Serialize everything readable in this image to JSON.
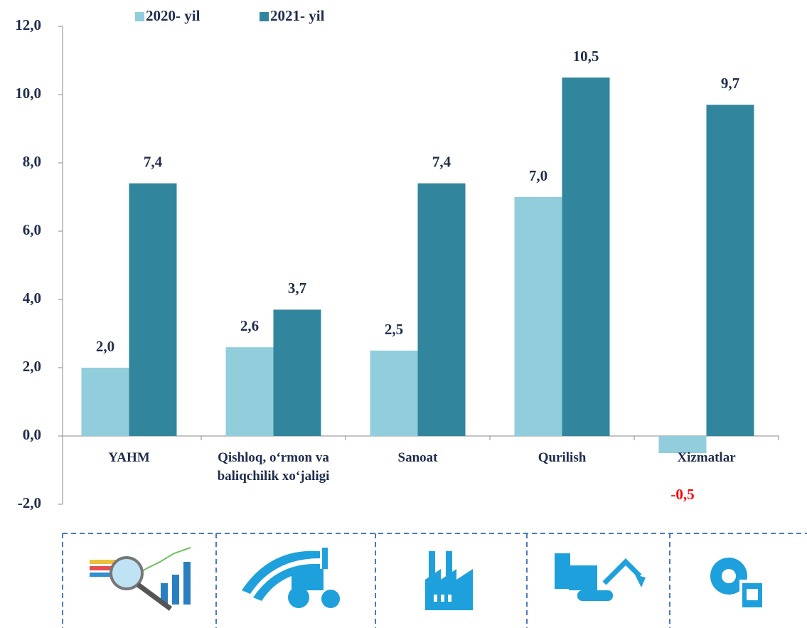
{
  "chart_data": {
    "type": "bar",
    "categories": [
      "YAHM",
      "Qishloq, o‘rmon va baliqchilik xo‘jaligi",
      "Sanoat",
      "Qurilish",
      "Xizmatlar"
    ],
    "series": [
      {
        "name": "2020- yil",
        "color": "#92cddc",
        "values": [
          2.0,
          2.6,
          2.5,
          7.0,
          -0.5
        ],
        "value_labels": [
          "2,0",
          "2,6",
          "2,5",
          "7,0",
          "-0,5"
        ]
      },
      {
        "name": "2021- yil",
        "color": "#31859c",
        "values": [
          7.4,
          3.7,
          7.4,
          10.5,
          9.7
        ],
        "value_labels": [
          "7,4",
          "3,7",
          "7,4",
          "10,5",
          "9,7"
        ]
      }
    ],
    "ylim": [
      -2,
      12
    ],
    "yticks": [
      {
        "value": -2,
        "label": "-2,0"
      },
      {
        "value": 0,
        "label": "0,0"
      },
      {
        "value": 2,
        "label": "2,0"
      },
      {
        "value": 4,
        "label": "4,0"
      },
      {
        "value": 6,
        "label": "6,0"
      },
      {
        "value": 8,
        "label": "8,0"
      },
      {
        "value": 10,
        "label": "10,0"
      },
      {
        "value": 12,
        "label": "12,0"
      }
    ],
    "negative_label_color": "#ff0000",
    "legend": "top"
  }
}
